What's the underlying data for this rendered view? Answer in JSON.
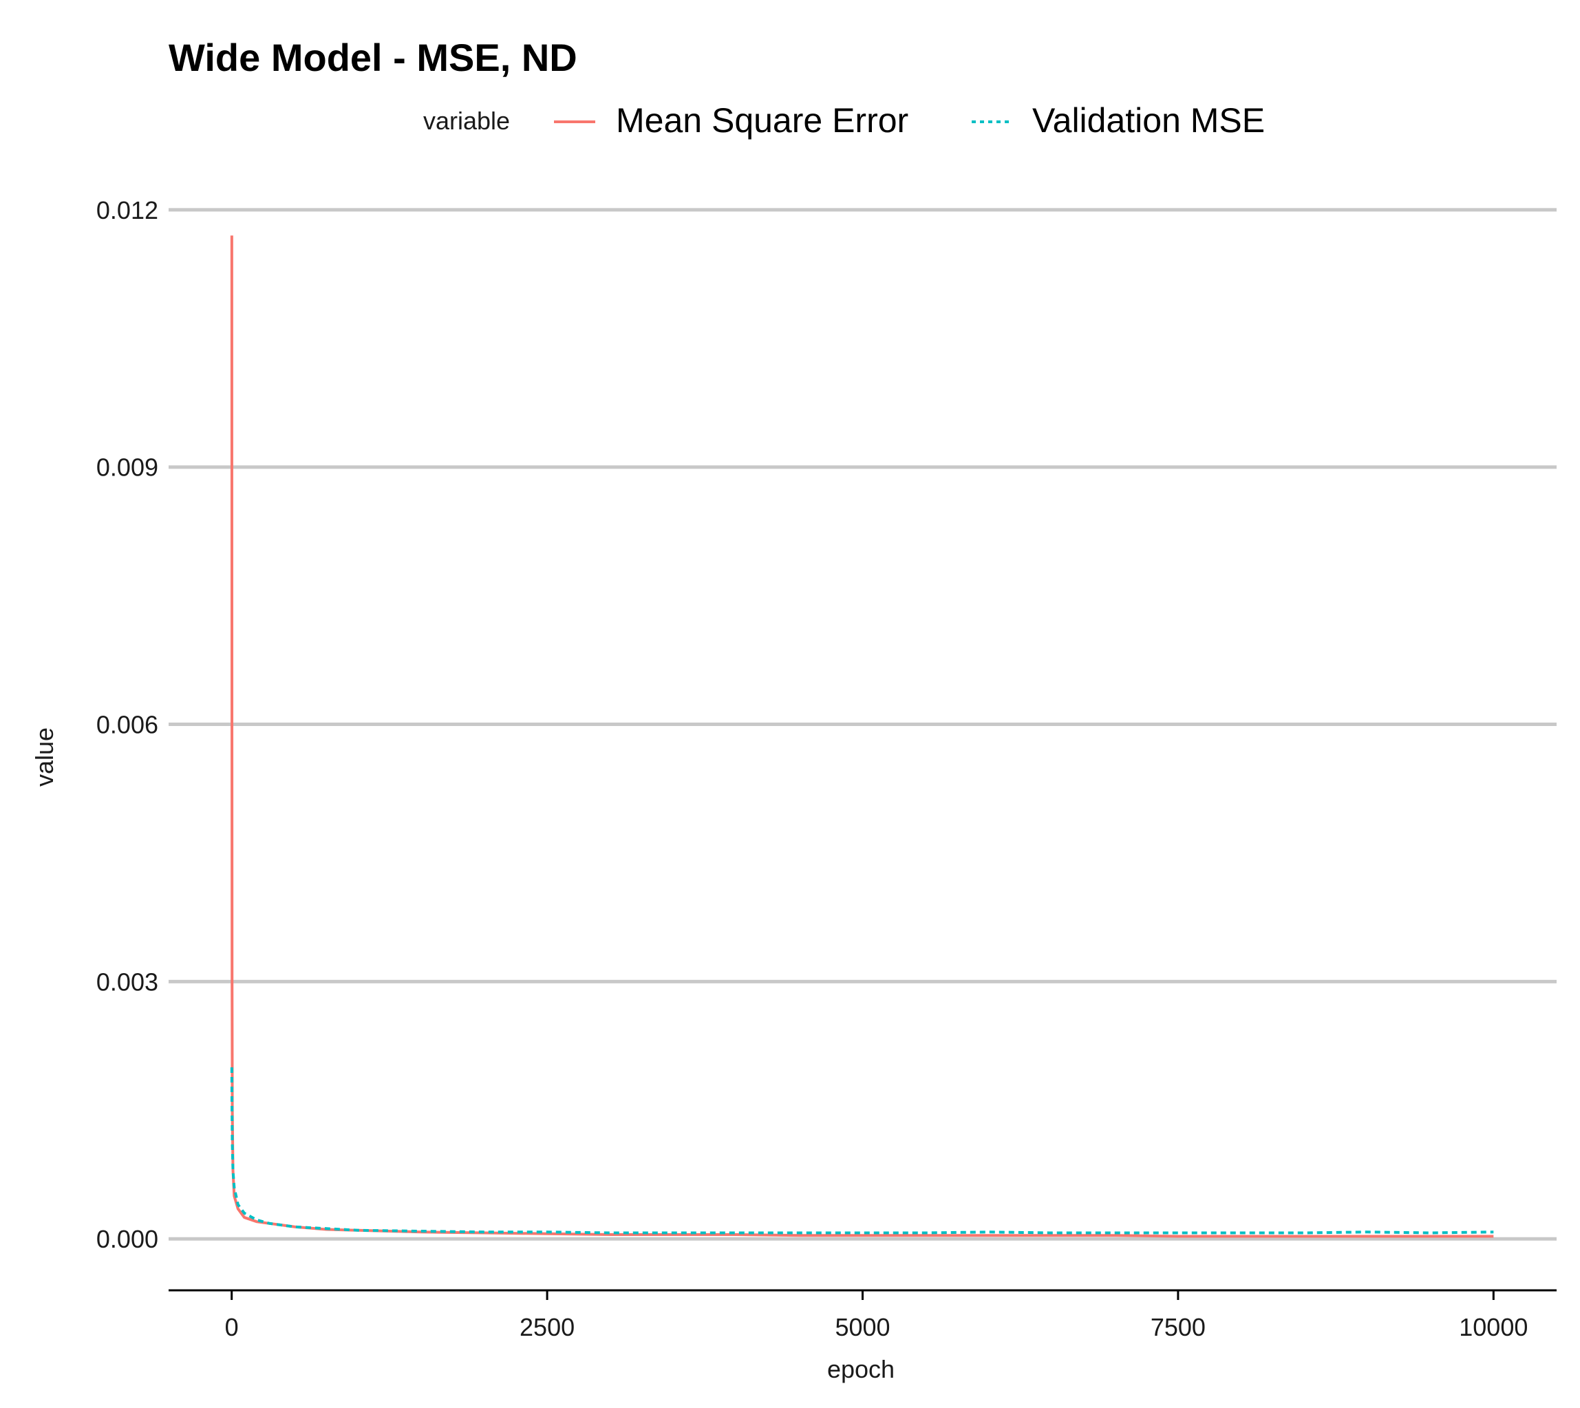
{
  "chart_data": {
    "type": "line",
    "title": "Wide Model - MSE, ND",
    "xlabel": "epoch",
    "ylabel": "value",
    "xlim": [
      -500,
      10500
    ],
    "ylim": [
      -0.0006,
      0.0124
    ],
    "xticks": [
      0,
      2500,
      5000,
      7500,
      10000
    ],
    "xtick_labels": [
      "0",
      "2500",
      "5000",
      "7500",
      "10000"
    ],
    "yticks": [
      0.0,
      0.003,
      0.006,
      0.009,
      0.012
    ],
    "ytick_labels": [
      "0.000",
      "0.003",
      "0.006",
      "0.009",
      "0.012"
    ],
    "grid": "horizontal major lines",
    "legend": {
      "title": "variable",
      "position": "top",
      "entries": [
        "Mean Square Error",
        "Validation MSE"
      ]
    },
    "series": [
      {
        "name": "Mean Square Error",
        "color": "#F8766D",
        "line_style": "solid",
        "x": [
          1,
          2,
          3,
          5,
          10,
          20,
          50,
          100,
          200,
          300,
          400,
          500,
          750,
          1000,
          1500,
          2000,
          2500,
          3000,
          3500,
          4000,
          4500,
          5000,
          5500,
          6000,
          6500,
          7000,
          7500,
          8000,
          8500,
          9000,
          9500,
          10000
        ],
        "y": [
          0.0117,
          0.006,
          0.003,
          0.0015,
          0.0008,
          0.0005,
          0.00035,
          0.00025,
          0.0002,
          0.00018,
          0.00016,
          0.00014,
          0.00011,
          0.0001,
          8e-05,
          7e-05,
          6e-05,
          5e-05,
          5e-05,
          5e-05,
          4e-05,
          4e-05,
          4e-05,
          4e-05,
          4e-05,
          4e-05,
          3e-05,
          3e-05,
          3e-05,
          3e-05,
          3e-05,
          3e-05
        ]
      },
      {
        "name": "Validation MSE",
        "color": "#00BFC4",
        "line_style": "dashed",
        "x": [
          1,
          2,
          5,
          10,
          20,
          50,
          100,
          200,
          300,
          500,
          750,
          1000,
          1500,
          2000,
          2500,
          3000,
          3500,
          4000,
          4500,
          5000,
          5500,
          6000,
          6500,
          7000,
          7500,
          8000,
          8500,
          9000,
          9500,
          10000
        ],
        "y": [
          0.002,
          0.0016,
          0.0011,
          0.0008,
          0.0006,
          0.0004,
          0.0003,
          0.00022,
          0.00018,
          0.00014,
          0.00012,
          0.0001,
          9e-05,
          8e-05,
          8e-05,
          7e-05,
          7e-05,
          7e-05,
          7e-05,
          7e-05,
          7e-05,
          8e-05,
          7e-05,
          7e-05,
          7e-05,
          7e-05,
          7e-05,
          8e-05,
          7e-05,
          8e-05
        ]
      }
    ]
  }
}
